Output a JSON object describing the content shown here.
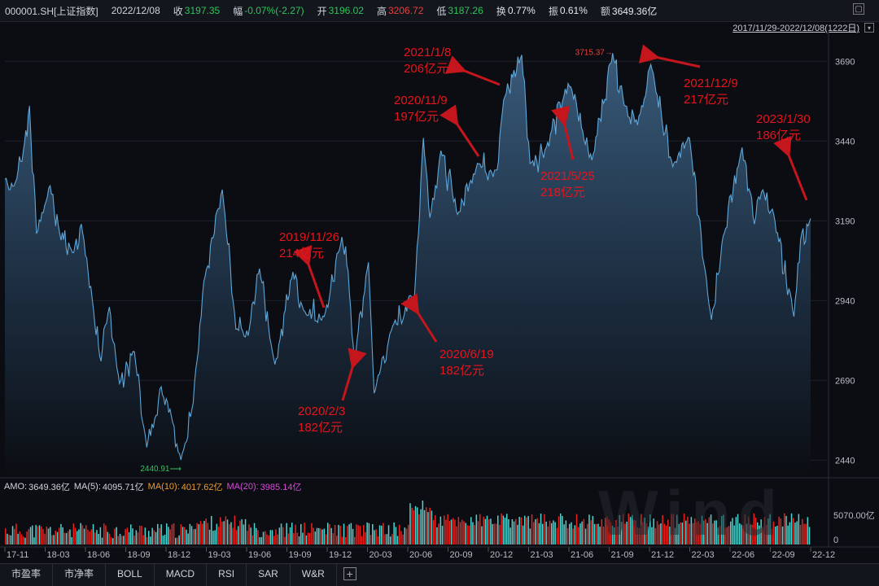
{
  "header": {
    "code": "000001.SH[上证指数]",
    "date": "2022/12/08",
    "close_label": "收",
    "close": "3197.35",
    "change_label": "幅",
    "change": "-0.07%(-2.27)",
    "open_label": "开",
    "open": "3196.02",
    "high_label": "高",
    "high": "3206.72",
    "low_label": "低",
    "low": "3187.26",
    "turnover_label": "换",
    "turnover": "0.77%",
    "amplitude_label": "振",
    "amplitude": "0.61%",
    "amount_label": "额",
    "amount": "3649.36亿",
    "range": "2017/11/29-2022/12/08(1222日)"
  },
  "chart_data": {
    "type": "area",
    "y_ticks": [
      "3690",
      "3440",
      "3190",
      "2940",
      "2690",
      "2440"
    ],
    "ylim": [
      2390,
      3780
    ],
    "x_ticks": [
      "17-11",
      "18-03",
      "18-06",
      "18-09",
      "18-12",
      "19-03",
      "19-06",
      "19-09",
      "19-12",
      "20-03",
      "20-06",
      "20-09",
      "20-12",
      "21-03",
      "21-06",
      "21-09",
      "21-12",
      "22-03",
      "22-06",
      "22-09",
      "22-12"
    ],
    "series_points": [
      [
        "2017-11-29",
        3320
      ],
      [
        "2017-12-20",
        3300
      ],
      [
        "2018-01-10",
        3410
      ],
      [
        "2018-01-24",
        3550
      ],
      [
        "2018-02-09",
        3150
      ],
      [
        "2018-03-12",
        3300
      ],
      [
        "2018-04-03",
        3150
      ],
      [
        "2018-05-02",
        3090
      ],
      [
        "2018-05-22",
        3180
      ],
      [
        "2018-06-19",
        2910
      ],
      [
        "2018-07-06",
        2750
      ],
      [
        "2018-07-25",
        2920
      ],
      [
        "2018-08-17",
        2680
      ],
      [
        "2018-09-20",
        2780
      ],
      [
        "2018-10-18",
        2480
      ],
      [
        "2018-11-20",
        2670
      ],
      [
        "2018-12-10",
        2600
      ],
      [
        "2019-01-04",
        2440.91
      ],
      [
        "2019-02-01",
        2620
      ],
      [
        "2019-02-25",
        3000
      ],
      [
        "2019-04-08",
        3288
      ],
      [
        "2019-05-09",
        2850
      ],
      [
        "2019-06-06",
        2830
      ],
      [
        "2019-07-02",
        3040
      ],
      [
        "2019-08-06",
        2740
      ],
      [
        "2019-09-16",
        3030
      ],
      [
        "2019-10-10",
        2910
      ],
      [
        "2019-11-26",
        2890
      ],
      [
        "2019-12-31",
        3100
      ],
      [
        "2020-01-14",
        3110
      ],
      [
        "2020-02-03",
        2750
      ],
      [
        "2020-03-06",
        3060
      ],
      [
        "2020-03-19",
        2650
      ],
      [
        "2020-04-30",
        2860
      ],
      [
        "2020-06-19",
        2960
      ],
      [
        "2020-07-09",
        3450
      ],
      [
        "2020-07-24",
        3200
      ],
      [
        "2020-08-18",
        3410
      ],
      [
        "2020-09-25",
        3210
      ],
      [
        "2020-11-09",
        3370
      ],
      [
        "2020-12-24",
        3350
      ],
      [
        "2021-01-08",
        3570
      ],
      [
        "2021-02-18",
        3710
      ],
      [
        "2021-03-09",
        3370
      ],
      [
        "2021-04-15",
        3420
      ],
      [
        "2021-05-25",
        3580
      ],
      [
        "2021-06-10",
        3610
      ],
      [
        "2021-07-28",
        3380
      ],
      [
        "2021-09-13",
        3715.37
      ],
      [
        "2021-10-12",
        3550
      ],
      [
        "2021-11-09",
        3490
      ],
      [
        "2021-12-09",
        3680
      ],
      [
        "2022-01-28",
        3360
      ],
      [
        "2022-03-07",
        3450
      ],
      [
        "2022-04-26",
        2880
      ],
      [
        "2022-05-20",
        3120
      ],
      [
        "2022-07-05",
        3420
      ],
      [
        "2022-08-02",
        3180
      ],
      [
        "2022-08-18",
        3280
      ],
      [
        "2022-09-15",
        3210
      ],
      [
        "2022-10-31",
        2890
      ],
      [
        "2022-11-15",
        3130
      ],
      [
        "2022-12-08",
        3197.35
      ]
    ],
    "labels": {
      "max": "3715.37",
      "min": "2440.91"
    },
    "volume": {
      "amo_label": "AMO:",
      "amo": "3649.36亿",
      "ma5_label": "MA(5):",
      "ma5": "4095.71亿",
      "ma10_label": "MA(10):",
      "ma10": "4017.62亿",
      "ma20_label": "MA(20):",
      "ma20": "3985.14亿",
      "y_ticks": [
        "5070.00亿",
        "0"
      ]
    },
    "annotations": [
      {
        "date": "2019/11/26",
        "value": "214亿元"
      },
      {
        "date": "2020/2/3",
        "value": "182亿元"
      },
      {
        "date": "2020/6/19",
        "value": "182亿元"
      },
      {
        "date": "2020/11/9",
        "value": "197亿元"
      },
      {
        "date": "2021/1/8",
        "value": "206亿元"
      },
      {
        "date": "2021/5/25",
        "value": "218亿元"
      },
      {
        "date": "2021/12/9",
        "value": "217亿元"
      },
      {
        "date": "2023/1/30",
        "value": "186亿元"
      }
    ],
    "colors": {
      "line": "#5ea6d8",
      "annotation": "#e8141b",
      "up": "#e8231f",
      "down": "#4fd4d0"
    }
  },
  "tabs": [
    "市盈率",
    "市净率",
    "BOLL",
    "MACD",
    "RSI",
    "SAR",
    "W&R"
  ],
  "watermark": "Wind"
}
